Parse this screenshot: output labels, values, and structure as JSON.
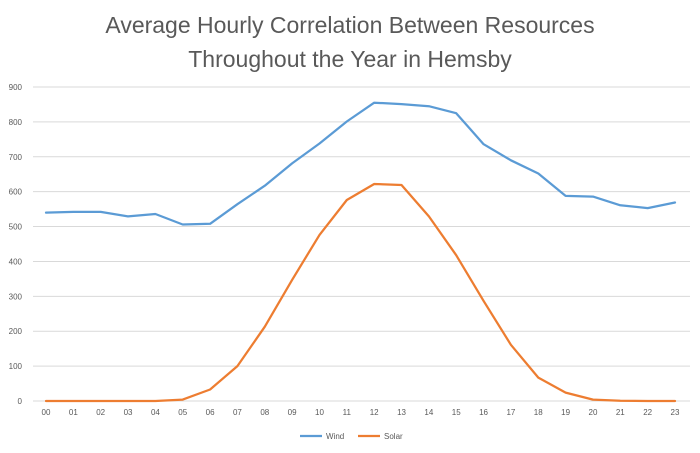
{
  "chart_data": {
    "type": "line",
    "title_lines": [
      "Average Hourly Correlation Between Resources",
      "Throughout the Year in Hemsby"
    ],
    "categories": [
      "00",
      "01",
      "02",
      "03",
      "04",
      "05",
      "06",
      "07",
      "08",
      "09",
      "10",
      "11",
      "12",
      "13",
      "14",
      "15",
      "16",
      "17",
      "18",
      "19",
      "20",
      "21",
      "22",
      "23"
    ],
    "y_ticks": [
      "0",
      "100",
      "200",
      "300",
      "400",
      "500",
      "600",
      "700",
      "800",
      "900"
    ],
    "ylim": [
      0,
      900
    ],
    "grid": true,
    "legend_position": "bottom-center",
    "series": [
      {
        "name": "Wind",
        "color": "#5b9bd5",
        "values": [
          540,
          542,
          542,
          529,
          536,
          506,
          508,
          564,
          617,
          681,
          738,
          801,
          855,
          851,
          845,
          825,
          736,
          690,
          652,
          588,
          586,
          561,
          553,
          569
        ]
      },
      {
        "name": "Solar",
        "color": "#ed7d31",
        "values": [
          0,
          0,
          0,
          0,
          0,
          4,
          33,
          100,
          213,
          347,
          476,
          576,
          622,
          619,
          529,
          418,
          287,
          161,
          67,
          24,
          4,
          1,
          0,
          0
        ]
      }
    ]
  }
}
